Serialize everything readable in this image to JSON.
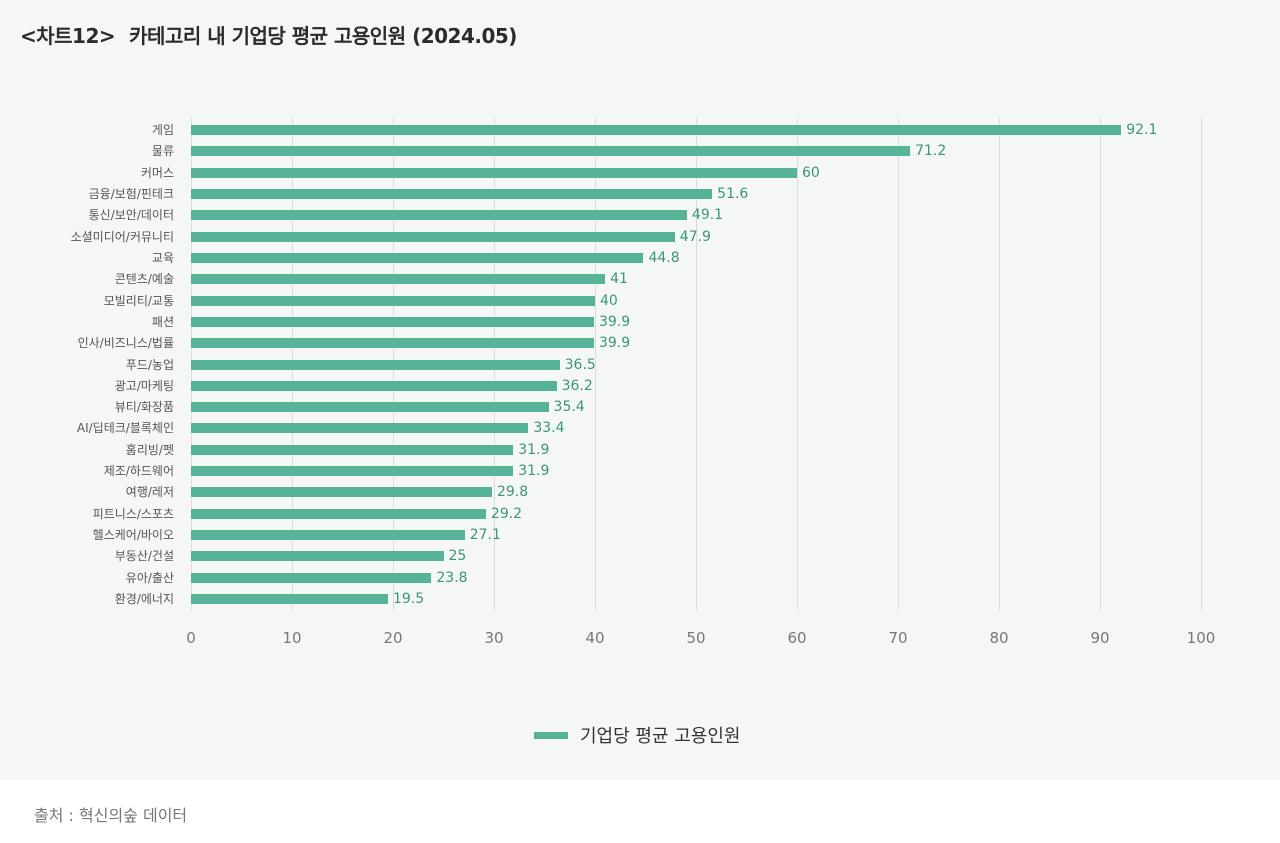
{
  "header": {
    "tag": "<차트12>",
    "title": "카테고리 내 기업당 평균 고용인원 (2024.05)"
  },
  "legend": {
    "label": "기업당 평균 고용인원",
    "color": "#57b397"
  },
  "footer": {
    "source": "출처 : 혁신의숲 데이터"
  },
  "colors": {
    "bar": "#57b397",
    "value_label": "#3a9679",
    "background": "#f5f7f6",
    "grid": "#dcdcdc"
  },
  "chart_data": {
    "type": "bar",
    "orientation": "horizontal",
    "title": "<차트12> 카테고리 내 기업당 평균 고용인원 (2024.05)",
    "xlabel": "",
    "ylabel": "",
    "xlim": [
      0,
      100
    ],
    "x_ticks": [
      "0",
      "10",
      "20",
      "30",
      "40",
      "50",
      "60",
      "70",
      "80",
      "90",
      "100"
    ],
    "grid": true,
    "legend_position": "bottom",
    "series": [
      {
        "name": "기업당 평균 고용인원"
      }
    ],
    "categories": [
      "게임",
      "물류",
      "커머스",
      "금융/보험/핀테크",
      "통신/보안/데이터",
      "소셜미디어/커뮤니티",
      "교육",
      "콘텐츠/예술",
      "모빌리티/교통",
      "패션",
      "인사/비즈니스/법률",
      "푸드/농업",
      "광고/마케팅",
      "뷰티/화장품",
      "AI/딥테크/블록체인",
      "홈리빙/펫",
      "제조/하드웨어",
      "여행/레저",
      "피트니스/스포츠",
      "헬스케어/바이오",
      "부동산/건설",
      "유아/출산",
      "환경/에너지"
    ],
    "values": [
      92.1,
      71.2,
      60,
      51.6,
      49.1,
      47.9,
      44.8,
      41,
      40,
      39.9,
      39.9,
      36.5,
      36.2,
      35.4,
      33.4,
      31.9,
      31.9,
      29.8,
      29.2,
      27.1,
      25,
      23.8,
      19.5
    ],
    "value_labels": [
      "92.1",
      "71.2",
      "60",
      "51.6",
      "49.1",
      "47.9",
      "44.8",
      "41",
      "40",
      "39.9",
      "39.9",
      "36.5",
      "36.2",
      "35.4",
      "33.4",
      "31.9",
      "31.9",
      "29.8",
      "29.2",
      "27.1",
      "25",
      "23.8",
      "19.5"
    ]
  }
}
